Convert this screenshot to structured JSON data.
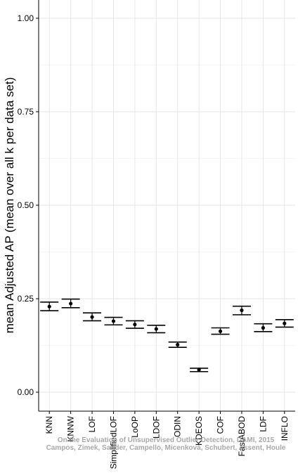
{
  "chart_data": {
    "type": "errorbar",
    "ylabel": "mean Adjusted AP (mean over all k per data set)",
    "xlabel": "",
    "ylim": [
      -0.05,
      1.05
    ],
    "y_ticks": [
      "0.00",
      "0.25",
      "0.50",
      "0.75",
      "1.00"
    ],
    "grid": true,
    "categories": [
      "KNN",
      "KNNW",
      "LOF",
      "SimplifiedLOF",
      "LoOP",
      "LDOF",
      "ODIN",
      "KDEOS",
      "COF",
      "FastABOD",
      "LDF",
      "INFLO"
    ],
    "values": [
      0.229,
      0.237,
      0.201,
      0.19,
      0.181,
      0.169,
      0.127,
      0.06,
      0.163,
      0.219,
      0.172,
      0.184
    ],
    "upper": [
      0.241,
      0.249,
      0.212,
      0.2,
      0.191,
      0.179,
      0.134,
      0.064,
      0.172,
      0.23,
      0.183,
      0.194
    ],
    "lower": [
      0.218,
      0.226,
      0.191,
      0.18,
      0.171,
      0.159,
      0.12,
      0.055,
      0.155,
      0.207,
      0.162,
      0.174
    ]
  },
  "watermark": {
    "line1": "On the Evaluation of Unsupervised Outlier Detection, DAMI, 2015",
    "line2": "Campos, Zimek, Sander, Campello, Micenková, Schubert, Assent, Houle"
  }
}
